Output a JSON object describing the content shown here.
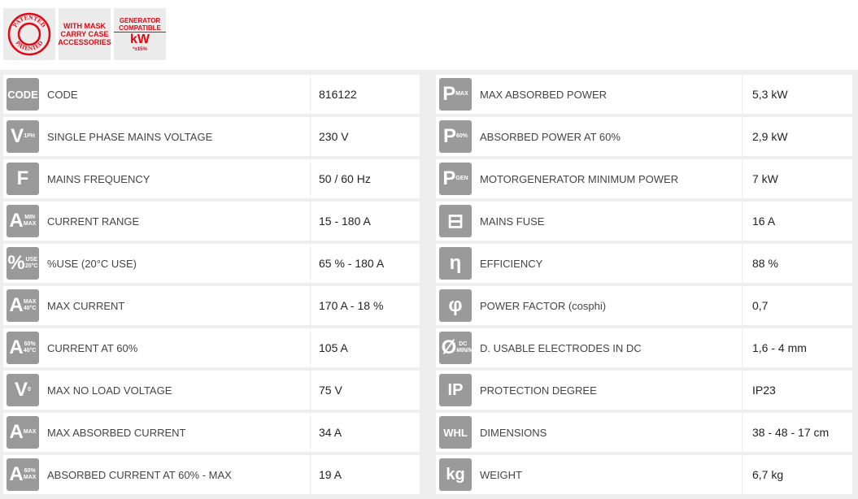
{
  "badges": [
    {
      "name": "patented-badge",
      "text": "PATENTED"
    },
    {
      "name": "with-mask-badge",
      "text": "WITH MASK CARRY CASE ACCESSORIES"
    },
    {
      "name": "generator-compatible-badge",
      "text": "GENERATOR COMPATIBLE",
      "sub": "kW",
      "note": "*±15%"
    }
  ],
  "left": [
    {
      "icon": "CODE",
      "sub": "",
      "label": "CODE",
      "value": "816122"
    },
    {
      "icon": "V",
      "sub": "1PH",
      "label": "SINGLE PHASE MAINS VOLTAGE",
      "value": "230 V"
    },
    {
      "icon": "F",
      "sub": "",
      "label": "MAINS FREQUENCY",
      "value": "50 / 60 Hz"
    },
    {
      "icon": "A",
      "sub": "MIN MAX",
      "label": "CURRENT RANGE",
      "value": "15 - 180 A"
    },
    {
      "icon": "%",
      "sub": "USE 20°C",
      "label": "%USE (20°C USE)",
      "value": "65 % - 180 A"
    },
    {
      "icon": "A",
      "sub": "MAX 40°C",
      "label": "MAX CURRENT",
      "value": "170 A - 18 %"
    },
    {
      "icon": "A",
      "sub": "60% 40°C",
      "label": "CURRENT AT 60%",
      "value": "105 A"
    },
    {
      "icon": "V",
      "sub": "0",
      "label": "MAX NO LOAD VOLTAGE",
      "value": "75 V"
    },
    {
      "icon": "A",
      "sub": "MAX",
      "label": "MAX ABSORBED CURRENT",
      "value": "34 A"
    },
    {
      "icon": "A",
      "sub": "60% MAX",
      "label": "ABSORBED CURRENT AT 60% - MAX",
      "value": "19 A"
    }
  ],
  "right": [
    {
      "icon": "P",
      "sub": "MAX",
      "label": "MAX ABSORBED POWER",
      "value": "5,3 kW"
    },
    {
      "icon": "P",
      "sub": "60%",
      "label": "ABSORBED POWER AT 60%",
      "value": "2,9 kW"
    },
    {
      "icon": "P",
      "sub": "GEN",
      "label": "MOTORGENERATOR MINIMUM POWER",
      "value": "7 kW"
    },
    {
      "icon": "⊟",
      "sub": "",
      "label": "MAINS FUSE",
      "value": "16 A"
    },
    {
      "icon": "η",
      "sub": "",
      "label": "EFFICIENCY",
      "value": "88 %"
    },
    {
      "icon": "φ",
      "sub": "",
      "label": "POWER FACTOR (cosphi)",
      "value": "0,7"
    },
    {
      "icon": "Ø",
      "sub": "DC MIN/MAX",
      "label": "D. USABLE ELECTRODES IN DC",
      "value": "1,6 - 4 mm"
    },
    {
      "icon": "IP",
      "sub": "",
      "label": "PROTECTION DEGREE",
      "value": "IP23"
    },
    {
      "icon": "WHL",
      "sub": "",
      "label": "DIMENSIONS",
      "value": "38 - 48 - 17 cm"
    },
    {
      "icon": "kg",
      "sub": "",
      "label": "WEIGHT",
      "value": "6,7 kg"
    }
  ]
}
